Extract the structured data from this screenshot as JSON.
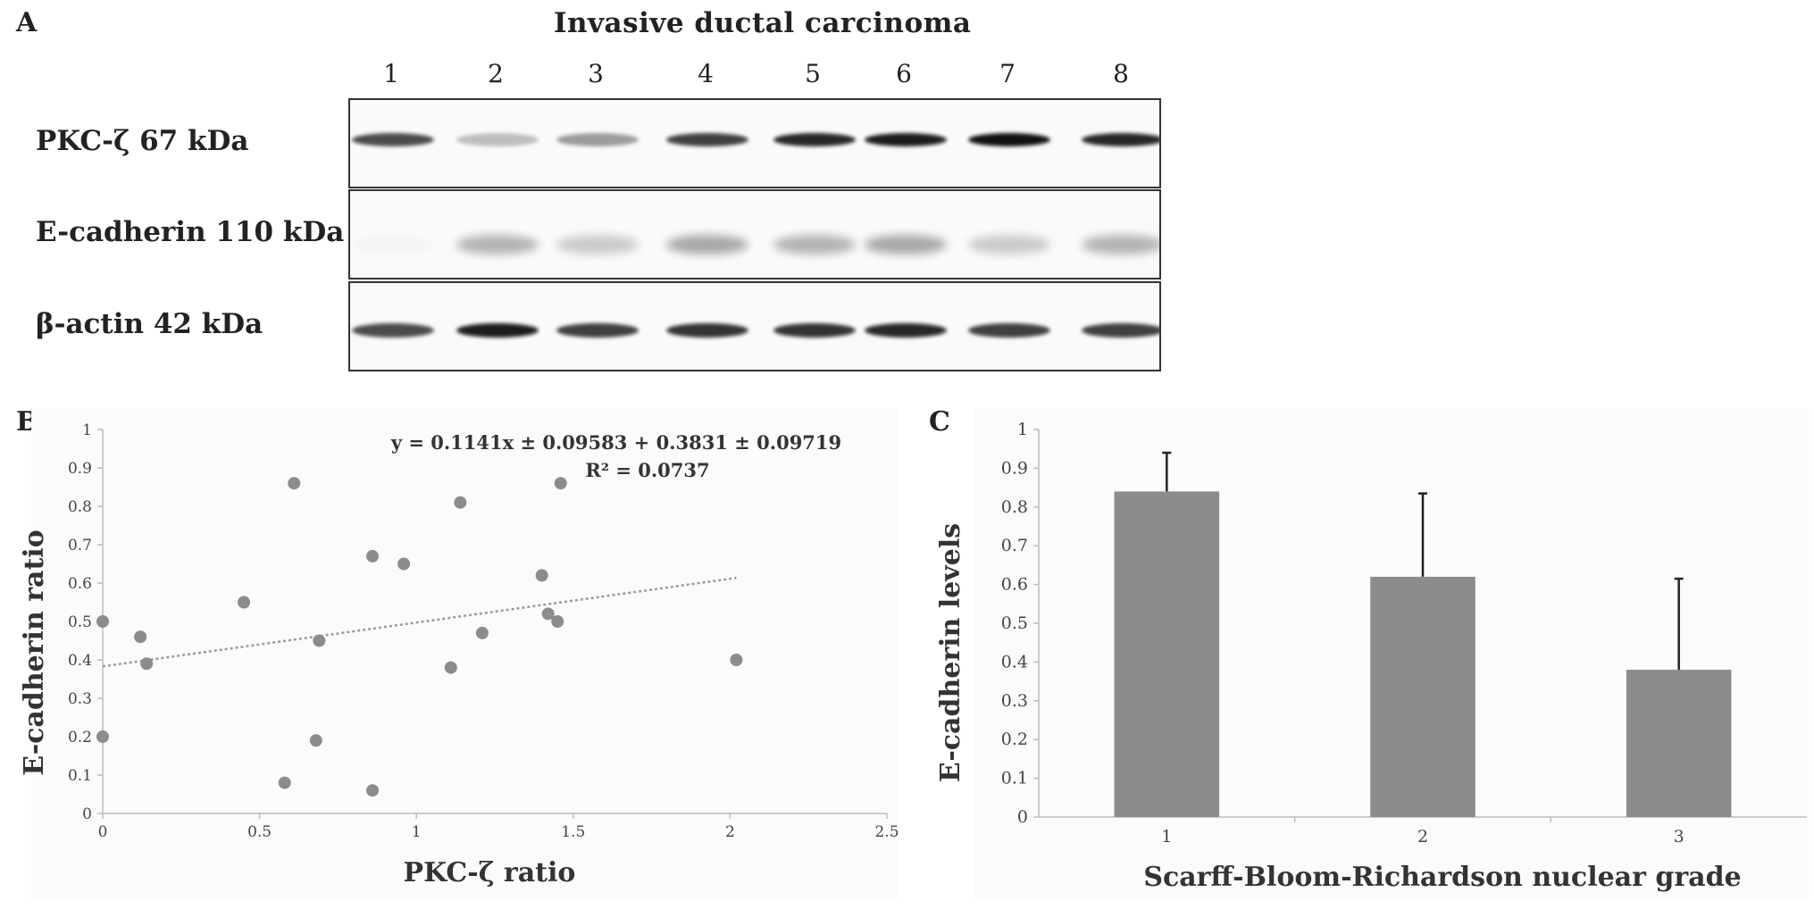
{
  "panel_labels": {
    "a": "A",
    "b": "B",
    "c": "C"
  },
  "blot": {
    "title": "Invasive ductal carcinoma",
    "lanes": [
      "1",
      "2",
      "3",
      "4",
      "5",
      "6",
      "7",
      "8"
    ],
    "rows": [
      {
        "label": "PKC-ζ 67 kDa",
        "intensities": [
          0.75,
          0.25,
          0.4,
          0.8,
          0.9,
          0.95,
          1.0,
          0.9
        ]
      },
      {
        "label": "E-cadherin 110 kDa",
        "intensities": [
          0.02,
          0.3,
          0.2,
          0.35,
          0.3,
          0.35,
          0.2,
          0.3
        ]
      },
      {
        "label": "β-actin 42 kDa",
        "intensities": [
          0.75,
          0.95,
          0.8,
          0.85,
          0.85,
          0.9,
          0.8,
          0.8
        ]
      }
    ],
    "band_color": "#111111"
  },
  "chart_data": [
    {
      "type": "scatter",
      "xlabel": "PKC-ζ ratio",
      "ylabel": "E-cadherin  ratio",
      "xlim": [
        0,
        2.5
      ],
      "ylim": [
        0,
        1
      ],
      "xticks": [
        "0",
        "0.5",
        "1",
        "1.5",
        "2",
        "2.5"
      ],
      "yticks": [
        "0",
        "0.1",
        "0.2",
        "0.3",
        "0.4",
        "0.5",
        "0.6",
        "0.7",
        "0.8",
        "0.9",
        "1"
      ],
      "points": [
        {
          "x": 0.0,
          "y": 0.5
        },
        {
          "x": 0.0,
          "y": 0.2
        },
        {
          "x": 0.12,
          "y": 0.46
        },
        {
          "x": 0.14,
          "y": 0.39
        },
        {
          "x": 0.45,
          "y": 0.55
        },
        {
          "x": 0.58,
          "y": 0.08
        },
        {
          "x": 0.61,
          "y": 0.86
        },
        {
          "x": 0.68,
          "y": 0.19
        },
        {
          "x": 0.69,
          "y": 0.45
        },
        {
          "x": 0.86,
          "y": 0.67
        },
        {
          "x": 0.86,
          "y": 0.06
        },
        {
          "x": 0.96,
          "y": 0.65
        },
        {
          "x": 1.11,
          "y": 0.38
        },
        {
          "x": 1.14,
          "y": 0.81
        },
        {
          "x": 1.21,
          "y": 0.47
        },
        {
          "x": 1.4,
          "y": 0.62
        },
        {
          "x": 1.42,
          "y": 0.52
        },
        {
          "x": 1.45,
          "y": 0.5
        },
        {
          "x": 1.46,
          "y": 0.86
        },
        {
          "x": 2.02,
          "y": 0.4
        }
      ],
      "trendline": {
        "x": [
          0,
          2.02
        ],
        "slope": 0.1141,
        "intercept": 0.3831
      },
      "equation": "y = 0.1141x ± 0.09583 + 0.3831 ± 0.09719",
      "r_squared": "R² = 0.0737",
      "grid": false,
      "point_color": "#8c8c8c"
    },
    {
      "type": "bar",
      "xlabel": "Scarff-Bloom-Richardson  nuclear  grade",
      "ylabel": "E-cadherin  levels",
      "categories": [
        "1",
        "2",
        "3"
      ],
      "values": [
        0.84,
        0.62,
        0.38
      ],
      "error_upper": [
        0.94,
        0.835,
        0.615
      ],
      "ylim": [
        0,
        1
      ],
      "yticks": [
        "0",
        "0.1",
        "0.2",
        "0.3",
        "0.4",
        "0.5",
        "0.6",
        "0.7",
        "0.8",
        "0.9",
        "1"
      ],
      "grid": false,
      "bar_color": "#8c8c8c"
    }
  ]
}
